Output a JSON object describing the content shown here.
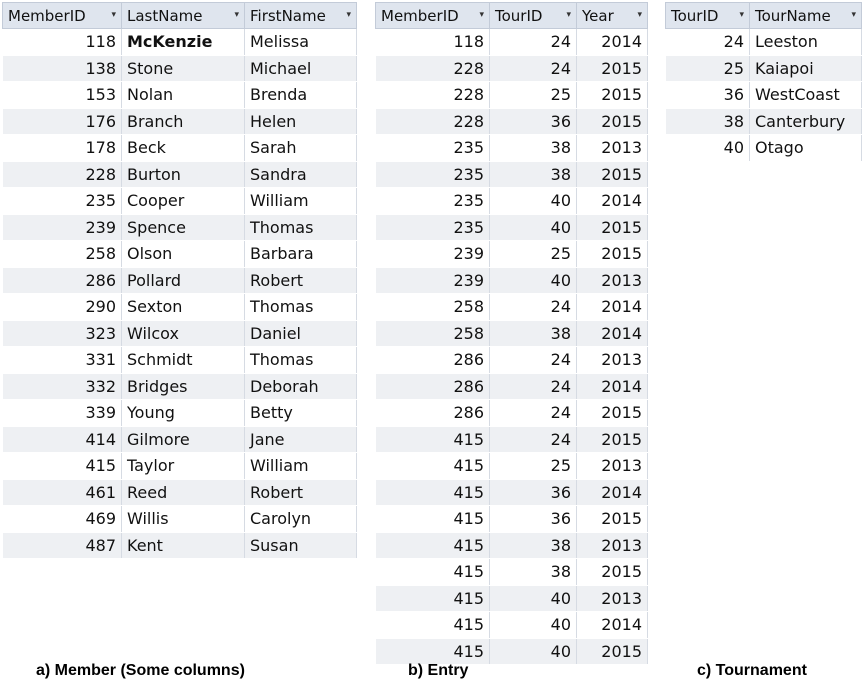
{
  "member": {
    "headers": [
      "MemberID",
      "LastName",
      "FirstName"
    ],
    "rows": [
      [
        "118",
        "McKenzie",
        "Melissa"
      ],
      [
        "138",
        "Stone",
        "Michael"
      ],
      [
        "153",
        "Nolan",
        "Brenda"
      ],
      [
        "176",
        "Branch",
        "Helen"
      ],
      [
        "178",
        "Beck",
        "Sarah"
      ],
      [
        "228",
        "Burton",
        "Sandra"
      ],
      [
        "235",
        "Cooper",
        "William"
      ],
      [
        "239",
        "Spence",
        "Thomas"
      ],
      [
        "258",
        "Olson",
        "Barbara"
      ],
      [
        "286",
        "Pollard",
        "Robert"
      ],
      [
        "290",
        "Sexton",
        "Thomas"
      ],
      [
        "323",
        "Wilcox",
        "Daniel"
      ],
      [
        "331",
        "Schmidt",
        "Thomas"
      ],
      [
        "332",
        "Bridges",
        "Deborah"
      ],
      [
        "339",
        "Young",
        "Betty"
      ],
      [
        "414",
        "Gilmore",
        "Jane"
      ],
      [
        "415",
        "Taylor",
        "William"
      ],
      [
        "461",
        "Reed",
        "Robert"
      ],
      [
        "469",
        "Willis",
        "Carolyn"
      ],
      [
        "487",
        "Kent",
        "Susan"
      ]
    ],
    "caption": "a) Member (Some columns)"
  },
  "entry": {
    "headers": [
      "MemberID",
      "TourID",
      "Year"
    ],
    "rows": [
      [
        "118",
        "24",
        "2014"
      ],
      [
        "228",
        "24",
        "2015"
      ],
      [
        "228",
        "25",
        "2015"
      ],
      [
        "228",
        "36",
        "2015"
      ],
      [
        "235",
        "38",
        "2013"
      ],
      [
        "235",
        "38",
        "2015"
      ],
      [
        "235",
        "40",
        "2014"
      ],
      [
        "235",
        "40",
        "2015"
      ],
      [
        "239",
        "25",
        "2015"
      ],
      [
        "239",
        "40",
        "2013"
      ],
      [
        "258",
        "24",
        "2014"
      ],
      [
        "258",
        "38",
        "2014"
      ],
      [
        "286",
        "24",
        "2013"
      ],
      [
        "286",
        "24",
        "2014"
      ],
      [
        "286",
        "24",
        "2015"
      ],
      [
        "415",
        "24",
        "2015"
      ],
      [
        "415",
        "25",
        "2013"
      ],
      [
        "415",
        "36",
        "2014"
      ],
      [
        "415",
        "36",
        "2015"
      ],
      [
        "415",
        "38",
        "2013"
      ],
      [
        "415",
        "38",
        "2015"
      ],
      [
        "415",
        "40",
        "2013"
      ],
      [
        "415",
        "40",
        "2014"
      ],
      [
        "415",
        "40",
        "2015"
      ]
    ],
    "caption": "b) Entry"
  },
  "tournament": {
    "headers": [
      "TourID",
      "TourName"
    ],
    "rows": [
      [
        "24",
        "Leeston"
      ],
      [
        "25",
        "Kaiapoi"
      ],
      [
        "36",
        "WestCoast"
      ],
      [
        "38",
        "Canterbury"
      ],
      [
        "40",
        "Otago"
      ]
    ],
    "caption": "c) Tournament"
  },
  "icons": {
    "column_dropdown": "filter-dropdown-arrow-icon",
    "column_dropdown_glyph": "▾"
  },
  "colors": {
    "header_bg": "#dfe5ee",
    "alt_row_bg": "#eef0f3"
  }
}
